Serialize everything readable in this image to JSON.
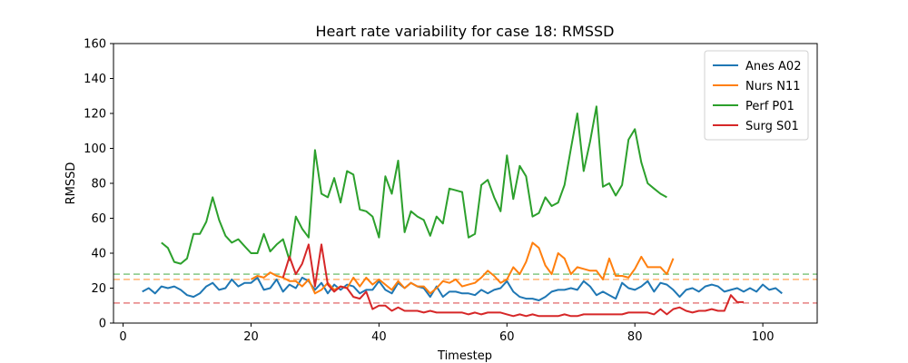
{
  "chart_data": {
    "type": "line",
    "title": "Heart rate variability for case 18: RMSSD",
    "xlabel": "Timestep",
    "ylabel": "RMSSD",
    "xlim": [
      -1.5,
      108.5
    ],
    "ylim": [
      0,
      160
    ],
    "xticks": [
      0,
      20,
      40,
      60,
      80,
      100
    ],
    "yticks": [
      0,
      20,
      40,
      60,
      80,
      100,
      120,
      140,
      160
    ],
    "grid": false,
    "legend_position": "top-right",
    "series": [
      {
        "name": "Anes A02",
        "color": "#1f77b4",
        "x": [
          3,
          4,
          5,
          6,
          7,
          8,
          9,
          10,
          11,
          12,
          13,
          14,
          15,
          16,
          17,
          18,
          19,
          20,
          21,
          22,
          23,
          24,
          25,
          26,
          27,
          28,
          29,
          30,
          31,
          32,
          33,
          34,
          35,
          36,
          37,
          38,
          39,
          40,
          41,
          42,
          43,
          44,
          45,
          46,
          47,
          48,
          49,
          50,
          51,
          52,
          53,
          54,
          55,
          56,
          57,
          58,
          59,
          60,
          61,
          62,
          63,
          64,
          65,
          66,
          67,
          68,
          69,
          70,
          71,
          72,
          73,
          74,
          75,
          76,
          77,
          78,
          79,
          80,
          81,
          82,
          83,
          84,
          85,
          86,
          87,
          88,
          89,
          90,
          91,
          92,
          93,
          94,
          95,
          96,
          97,
          98,
          99,
          100,
          101,
          102,
          103
        ],
        "y": [
          18,
          20,
          17,
          21,
          20,
          21,
          19,
          16,
          15,
          17,
          21,
          23,
          19,
          20,
          25,
          21,
          23,
          23,
          26,
          19,
          20,
          25,
          18,
          22,
          20,
          26,
          24,
          19,
          23,
          17,
          22,
          19,
          22,
          21,
          17,
          19,
          19,
          24,
          19,
          17,
          23,
          20,
          23,
          21,
          20,
          15,
          21,
          15,
          18,
          18,
          17,
          17,
          16,
          19,
          17,
          19,
          20,
          24,
          18,
          15,
          14,
          14,
          13,
          15,
          18,
          19,
          19,
          20,
          19,
          24,
          21,
          16,
          18,
          16,
          14,
          23,
          20,
          19,
          21,
          24,
          18,
          23,
          22,
          19,
          15,
          19,
          20,
          18,
          21,
          22,
          21,
          18,
          19,
          20,
          18,
          20,
          18,
          22,
          19,
          20,
          17
        ]
      },
      {
        "name": "Nurs N11",
        "color": "#ff7f0e",
        "x": [
          20,
          21,
          22,
          23,
          24,
          25,
          26,
          27,
          28,
          29,
          30,
          31,
          32,
          33,
          34,
          35,
          36,
          37,
          38,
          39,
          40,
          41,
          42,
          43,
          44,
          45,
          46,
          47,
          48,
          49,
          50,
          51,
          52,
          53,
          54,
          55,
          56,
          57,
          58,
          59,
          60,
          61,
          62,
          63,
          64,
          65,
          66,
          67,
          68,
          69,
          70,
          71,
          72,
          73,
          74,
          75,
          76,
          77,
          78,
          79,
          80,
          81,
          82,
          83,
          84,
          85,
          86
        ],
        "y": [
          25,
          27,
          26,
          29,
          27,
          26,
          24,
          24,
          21,
          25,
          17,
          19,
          23,
          19,
          21,
          20,
          26,
          21,
          26,
          22,
          25,
          22,
          19,
          24,
          20,
          23,
          21,
          21,
          17,
          20,
          24,
          23,
          25,
          21,
          22,
          23,
          26,
          30,
          27,
          23,
          25,
          32,
          28,
          35,
          46,
          43,
          33,
          28,
          40,
          37,
          28,
          32,
          31,
          30,
          30,
          25,
          37,
          27,
          27,
          26,
          31,
          38,
          32,
          32,
          32,
          28,
          37
        ]
      },
      {
        "name": "Perf P01",
        "color": "#2ca02c",
        "x": [
          6,
          7,
          8,
          9,
          10,
          11,
          12,
          13,
          14,
          15,
          16,
          17,
          18,
          19,
          20,
          21,
          22,
          23,
          24,
          25,
          26,
          27,
          28,
          29,
          30,
          31,
          32,
          33,
          34,
          35,
          36,
          37,
          38,
          39,
          40,
          41,
          42,
          43,
          44,
          45,
          46,
          47,
          48,
          49,
          50,
          51,
          52,
          53,
          54,
          55,
          56,
          57,
          58,
          59,
          60,
          61,
          62,
          63,
          64,
          65,
          66,
          67,
          68,
          69,
          70,
          71,
          72,
          73,
          74,
          75,
          76,
          77,
          78,
          79,
          80,
          81,
          82,
          83,
          84,
          85
        ],
        "y": [
          46,
          43,
          35,
          34,
          37,
          51,
          51,
          58,
          72,
          59,
          50,
          46,
          48,
          44,
          40,
          40,
          51,
          41,
          45,
          48,
          36,
          61,
          54,
          49,
          99,
          74,
          72,
          83,
          69,
          87,
          85,
          65,
          64,
          61,
          49,
          84,
          74,
          93,
          52,
          64,
          61,
          59,
          50,
          61,
          57,
          77,
          76,
          75,
          49,
          51,
          79,
          82,
          72,
          64,
          96,
          71,
          90,
          84,
          61,
          63,
          72,
          67,
          69,
          79,
          100,
          120,
          87,
          104,
          124,
          78,
          80,
          73,
          79,
          105,
          111,
          92,
          80,
          77,
          74,
          72
        ]
      },
      {
        "name": "Surg S01",
        "color": "#d62728",
        "x": [
          25,
          26,
          27,
          28,
          29,
          30,
          31,
          32,
          33,
          34,
          35,
          36,
          37,
          38,
          39,
          40,
          41,
          42,
          43,
          44,
          45,
          46,
          47,
          48,
          49,
          50,
          51,
          52,
          53,
          54,
          55,
          56,
          57,
          58,
          59,
          60,
          61,
          62,
          63,
          64,
          65,
          66,
          67,
          68,
          69,
          70,
          71,
          72,
          73,
          74,
          75,
          76,
          77,
          78,
          79,
          80,
          81,
          82,
          83,
          84,
          85,
          86,
          87,
          88,
          89,
          90,
          91,
          92,
          93,
          94,
          95,
          96,
          97
        ],
        "y": [
          26,
          38,
          28,
          34,
          45,
          21,
          45,
          22,
          18,
          21,
          20,
          15,
          14,
          18,
          8,
          10,
          10,
          7,
          9,
          7,
          7,
          7,
          6,
          7,
          6,
          6,
          6,
          6,
          6,
          5,
          6,
          5,
          6,
          6,
          6,
          5,
          4,
          5,
          4,
          5,
          4,
          4,
          4,
          4,
          5,
          4,
          4,
          5,
          5,
          5,
          5,
          5,
          5,
          5,
          6,
          6,
          6,
          6,
          5,
          8,
          5,
          8,
          9,
          7,
          6,
          7,
          7,
          8,
          7,
          7,
          16,
          12,
          12
        ]
      }
    ],
    "reference_lines": [
      {
        "y": 28,
        "color": "#2ca02c",
        "style": "dashed"
      },
      {
        "y": 25,
        "color": "#ff7f0e",
        "style": "dashed"
      },
      {
        "y": 11.5,
        "color": "#d62728",
        "style": "dashed"
      }
    ]
  }
}
